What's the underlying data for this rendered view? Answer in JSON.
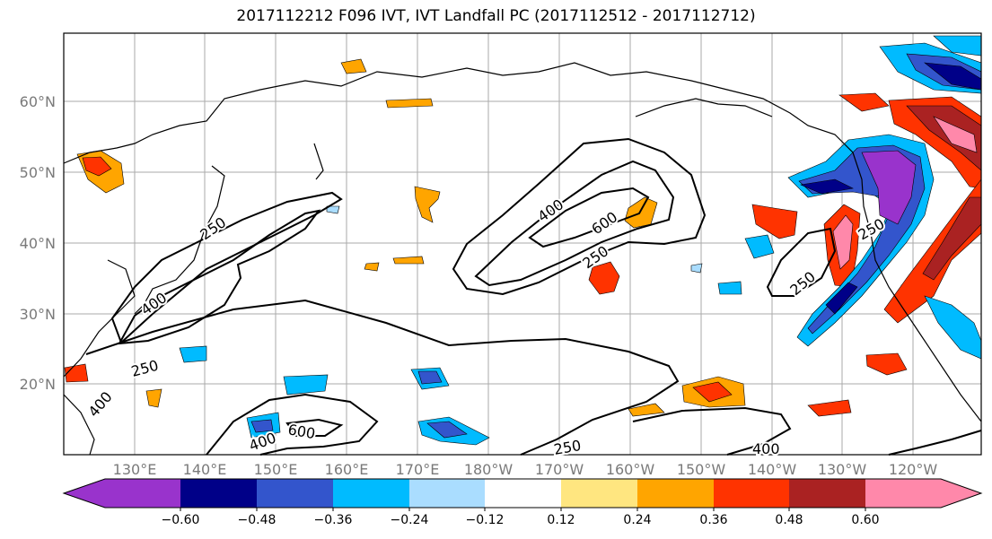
{
  "title": "2017112212 F096 IVT, IVT Landfall PC (2017112512 - 2017112712)",
  "lat_labels": [
    "60°N",
    "50°N",
    "40°N",
    "30°N",
    "20°N"
  ],
  "lon_labels": [
    "130°E",
    "140°E",
    "150°E",
    "160°E",
    "170°E",
    "180°W",
    "170°W",
    "160°W",
    "150°W",
    "140°W",
    "130°W",
    "120°W"
  ],
  "contour_labels": [
    "250",
    "400",
    "250",
    "400",
    "600",
    "400",
    "600",
    "250",
    "250",
    "250",
    "400",
    "250",
    "400"
  ],
  "colorbar": {
    "ticks": [
      "−0.60",
      "−0.48",
      "−0.36",
      "−0.24",
      "−0.12",
      "0.12",
      "0.24",
      "0.36",
      "0.48",
      "0.60"
    ],
    "colors": [
      "#9933cc",
      "#000088",
      "#3355cc",
      "#00bbff",
      "#aaddff",
      "#ffffff",
      "#ffe680",
      "#ffa500",
      "#ff3300",
      "#aa2222",
      "#ff88aa"
    ]
  },
  "colors": {
    "contour": "#000000",
    "coastline": "#000000",
    "grid": "#aaaaaa",
    "axis_label": "#7a7a7a"
  }
}
